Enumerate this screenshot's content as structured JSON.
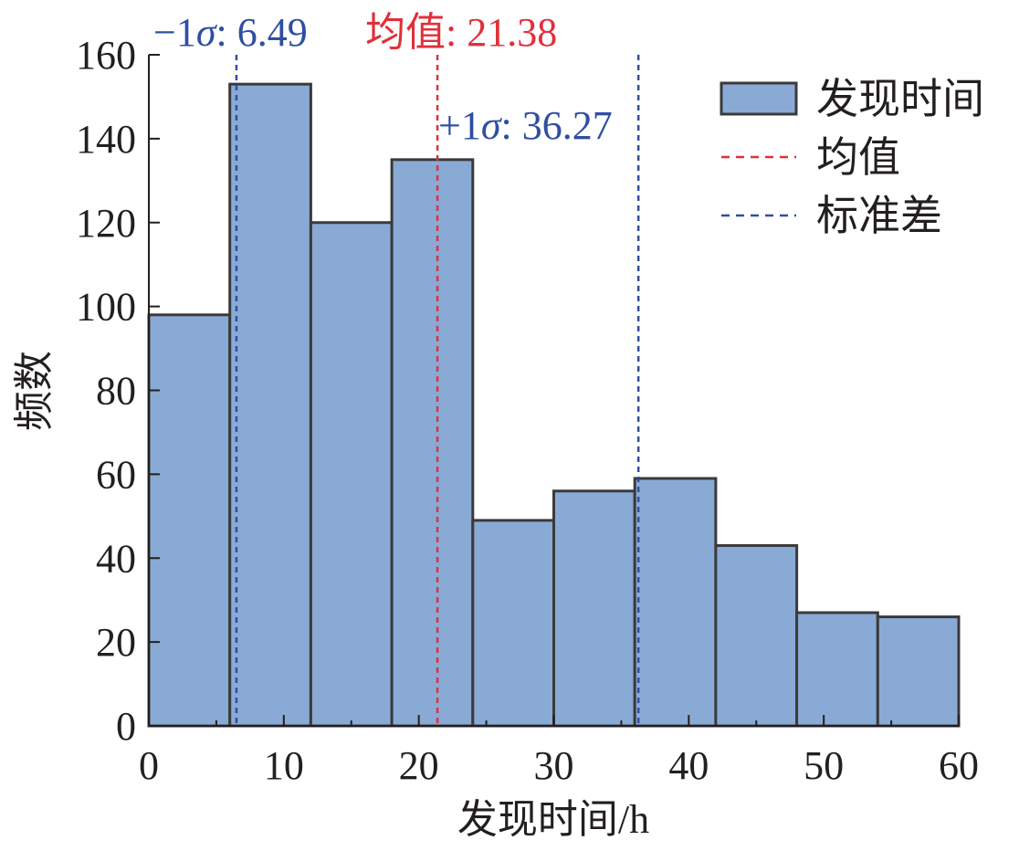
{
  "chart_data": {
    "type": "bar",
    "subtype": "histogram",
    "bin_edges": [
      0,
      6,
      12,
      18,
      24,
      30,
      36,
      42,
      48,
      54,
      60
    ],
    "values": [
      98,
      153,
      120,
      135,
      49,
      56,
      59,
      43,
      27,
      26
    ],
    "xlabel": "发现时间/h",
    "ylabel": "频数",
    "xlim": [
      0,
      60
    ],
    "ylim": [
      0,
      160
    ],
    "xticks": [
      "0",
      "10",
      "20",
      "30",
      "40",
      "50",
      "60"
    ],
    "yticks": [
      "0",
      "20",
      "40",
      "60",
      "80",
      "100",
      "120",
      "140",
      "160"
    ],
    "grid": false,
    "legend_position": "top-right",
    "series": [
      {
        "name": "发现时间",
        "color": "#8aaad6",
        "edgecolor": "#3a3a3a"
      }
    ],
    "reference_lines": [
      {
        "name": "均值",
        "x": 21.38,
        "color": "#e0303a",
        "style": "dashed",
        "label_prefix": "均值: ",
        "label_value": "21.38"
      },
      {
        "name": "标准差",
        "x": 6.49,
        "color": "#2f4fa0",
        "style": "dashed",
        "label_prefix": "−1",
        "label_sigma": "σ",
        "label_suffix": ": ",
        "label_value": "6.49"
      },
      {
        "name": "标准差",
        "x": 36.27,
        "color": "#2f4fa0",
        "style": "dashed",
        "label_prefix": "+1",
        "label_sigma": "σ",
        "label_suffix": ": ",
        "label_value": "36.27"
      }
    ],
    "legend": [
      {
        "label": "发现时间",
        "kind": "patch",
        "color": "#8aaad6"
      },
      {
        "label": "均值",
        "kind": "dashed-line",
        "color": "#e0303a"
      },
      {
        "label": "标准差",
        "kind": "dashed-line",
        "color": "#2f4fa0"
      }
    ]
  }
}
